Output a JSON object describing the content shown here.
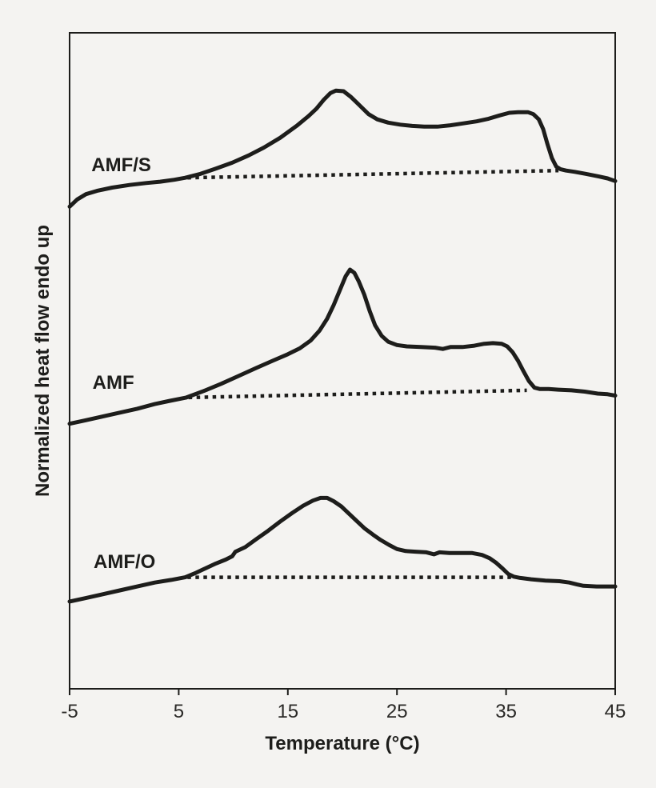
{
  "figure": {
    "background_color": "#f4f3f1",
    "ink_color": "#1d1d1b"
  },
  "chart_data": {
    "type": "line",
    "title": "",
    "xlabel": "Temperature (°C)",
    "ylabel": "Normalized heat flow endo up",
    "x_ticks": [
      -5,
      5,
      15,
      25,
      35,
      45
    ],
    "xlim": [
      -5,
      45
    ],
    "ylim": [
      0,
      100
    ],
    "grid": false,
    "legend_position": "none",
    "series": [
      {
        "name": "AMF/S",
        "style": "solid",
        "points": [
          [
            -5.0,
            73.5
          ],
          [
            -4.3,
            74.6
          ],
          [
            -3.5,
            75.4
          ],
          [
            -2.5,
            75.9
          ],
          [
            -1.1,
            76.4
          ],
          [
            0.5,
            76.8
          ],
          [
            2.0,
            77.1
          ],
          [
            3.3,
            77.3
          ],
          [
            4.6,
            77.6
          ],
          [
            5.6,
            77.9
          ],
          [
            7.0,
            78.5
          ],
          [
            8.4,
            79.3
          ],
          [
            9.9,
            80.2
          ],
          [
            11.4,
            81.3
          ],
          [
            12.8,
            82.5
          ],
          [
            14.3,
            84.0
          ],
          [
            15.8,
            85.8
          ],
          [
            16.9,
            87.3
          ],
          [
            17.6,
            88.4
          ],
          [
            18.3,
            89.8
          ],
          [
            18.9,
            90.8
          ],
          [
            19.4,
            91.2
          ],
          [
            20.1,
            91.1
          ],
          [
            20.8,
            90.2
          ],
          [
            21.6,
            88.9
          ],
          [
            22.4,
            87.6
          ],
          [
            23.2,
            86.8
          ],
          [
            24.2,
            86.3
          ],
          [
            25.3,
            86.0
          ],
          [
            26.4,
            85.8
          ],
          [
            27.5,
            85.7
          ],
          [
            28.7,
            85.7
          ],
          [
            29.9,
            85.9
          ],
          [
            31.1,
            86.2
          ],
          [
            32.3,
            86.5
          ],
          [
            33.4,
            86.9
          ],
          [
            34.4,
            87.4
          ],
          [
            35.3,
            87.8
          ],
          [
            36.1,
            87.9
          ],
          [
            37.0,
            87.9
          ],
          [
            37.5,
            87.6
          ],
          [
            38.0,
            86.8
          ],
          [
            38.4,
            85.3
          ],
          [
            38.8,
            83.0
          ],
          [
            39.2,
            80.9
          ],
          [
            39.6,
            79.6
          ],
          [
            40.0,
            79.2
          ],
          [
            40.5,
            79.0
          ],
          [
            41.3,
            78.8
          ],
          [
            42.3,
            78.5
          ],
          [
            43.5,
            78.1
          ],
          [
            44.3,
            77.8
          ],
          [
            45.0,
            77.4
          ]
        ]
      },
      {
        "name": "AMF/S baseline",
        "style": "dotted",
        "points": [
          [
            5.8,
            77.9
          ],
          [
            39.8,
            79.0
          ]
        ]
      },
      {
        "name": "AMF",
        "style": "solid",
        "points": [
          [
            -5.0,
            40.4
          ],
          [
            -3.6,
            40.9
          ],
          [
            -2.0,
            41.5
          ],
          [
            -0.4,
            42.1
          ],
          [
            1.2,
            42.7
          ],
          [
            2.8,
            43.4
          ],
          [
            4.2,
            43.9
          ],
          [
            5.7,
            44.4
          ],
          [
            7.3,
            45.4
          ],
          [
            8.9,
            46.5
          ],
          [
            10.5,
            47.7
          ],
          [
            12.1,
            48.9
          ],
          [
            13.6,
            50.0
          ],
          [
            15.0,
            51.0
          ],
          [
            16.1,
            51.9
          ],
          [
            17.1,
            53.1
          ],
          [
            17.9,
            54.6
          ],
          [
            18.6,
            56.4
          ],
          [
            19.2,
            58.5
          ],
          [
            19.8,
            60.9
          ],
          [
            20.3,
            62.9
          ],
          [
            20.7,
            63.9
          ],
          [
            21.1,
            63.4
          ],
          [
            21.5,
            62.1
          ],
          [
            22.0,
            60.1
          ],
          [
            22.5,
            57.6
          ],
          [
            23.0,
            55.4
          ],
          [
            23.6,
            53.8
          ],
          [
            24.2,
            52.9
          ],
          [
            25.0,
            52.4
          ],
          [
            25.9,
            52.2
          ],
          [
            27.2,
            52.1
          ],
          [
            28.5,
            52.0
          ],
          [
            29.2,
            51.8
          ],
          [
            29.9,
            52.1
          ],
          [
            31.0,
            52.1
          ],
          [
            32.1,
            52.3
          ],
          [
            33.0,
            52.6
          ],
          [
            33.8,
            52.7
          ],
          [
            34.6,
            52.6
          ],
          [
            35.1,
            52.2
          ],
          [
            35.6,
            51.3
          ],
          [
            36.1,
            50.0
          ],
          [
            36.6,
            48.4
          ],
          [
            37.1,
            46.9
          ],
          [
            37.6,
            45.9
          ],
          [
            38.1,
            45.7
          ],
          [
            38.9,
            45.7
          ],
          [
            39.8,
            45.6
          ],
          [
            41.0,
            45.5
          ],
          [
            42.2,
            45.3
          ],
          [
            43.4,
            45.0
          ],
          [
            44.3,
            44.9
          ],
          [
            45.0,
            44.7
          ]
        ]
      },
      {
        "name": "AMF baseline",
        "style": "dotted",
        "points": [
          [
            5.9,
            44.4
          ],
          [
            36.9,
            45.5
          ]
        ]
      },
      {
        "name": "AMF/O",
        "style": "solid",
        "points": [
          [
            -5.0,
            13.3
          ],
          [
            -3.6,
            13.8
          ],
          [
            -2.0,
            14.4
          ],
          [
            -0.4,
            15.0
          ],
          [
            1.2,
            15.6
          ],
          [
            2.8,
            16.2
          ],
          [
            4.3,
            16.6
          ],
          [
            5.6,
            17.0
          ],
          [
            6.6,
            17.7
          ],
          [
            7.5,
            18.4
          ],
          [
            8.4,
            19.1
          ],
          [
            9.3,
            19.7
          ],
          [
            9.9,
            20.2
          ],
          [
            10.2,
            20.9
          ],
          [
            11.1,
            21.6
          ],
          [
            12.1,
            22.8
          ],
          [
            13.2,
            24.1
          ],
          [
            14.3,
            25.5
          ],
          [
            15.4,
            26.8
          ],
          [
            16.4,
            27.9
          ],
          [
            17.3,
            28.7
          ],
          [
            18.0,
            29.1
          ],
          [
            18.6,
            29.1
          ],
          [
            19.2,
            28.6
          ],
          [
            19.9,
            27.8
          ],
          [
            20.6,
            26.7
          ],
          [
            21.3,
            25.6
          ],
          [
            22.0,
            24.5
          ],
          [
            22.8,
            23.5
          ],
          [
            23.5,
            22.7
          ],
          [
            24.3,
            21.9
          ],
          [
            25.0,
            21.3
          ],
          [
            25.8,
            21.0
          ],
          [
            26.7,
            20.9
          ],
          [
            27.7,
            20.8
          ],
          [
            28.4,
            20.5
          ],
          [
            28.9,
            20.8
          ],
          [
            29.8,
            20.7
          ],
          [
            30.9,
            20.7
          ],
          [
            31.9,
            20.7
          ],
          [
            32.8,
            20.4
          ],
          [
            33.5,
            19.9
          ],
          [
            34.1,
            19.2
          ],
          [
            34.7,
            18.3
          ],
          [
            35.2,
            17.5
          ],
          [
            35.7,
            17.1
          ],
          [
            36.3,
            16.9
          ],
          [
            37.3,
            16.7
          ],
          [
            38.6,
            16.5
          ],
          [
            39.9,
            16.4
          ],
          [
            40.8,
            16.2
          ],
          [
            41.5,
            15.9
          ],
          [
            42.1,
            15.7
          ],
          [
            43.3,
            15.6
          ],
          [
            45.0,
            15.6
          ]
        ]
      },
      {
        "name": "AMF/O baseline",
        "style": "dotted",
        "points": [
          [
            5.8,
            17.0
          ],
          [
            35.6,
            17.0
          ]
        ]
      }
    ],
    "annotations": [
      {
        "text": "AMF/S",
        "x": -3.0,
        "y": 79.9
      },
      {
        "text": "AMF",
        "x": -2.9,
        "y": 46.7
      },
      {
        "text": "AMF/O",
        "x": -2.8,
        "y": 19.4
      }
    ]
  }
}
